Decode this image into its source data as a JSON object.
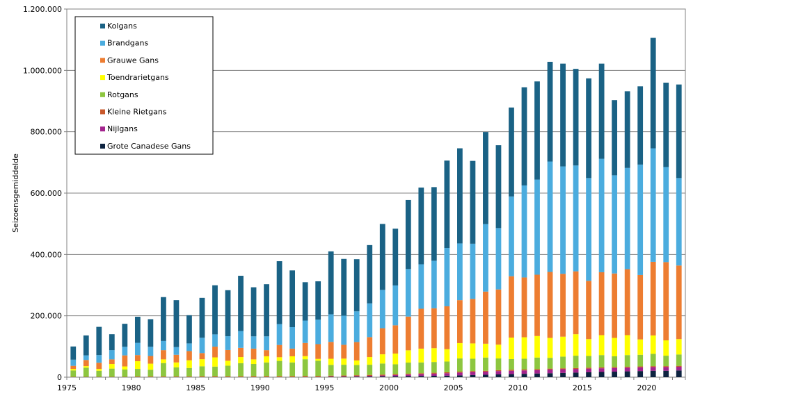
{
  "chart_data": {
    "type": "bar",
    "stacked": true,
    "title": "",
    "xlabel": "",
    "ylabel": "Seizoensgemiddelde",
    "ylim": [
      0,
      1200000
    ],
    "y_ticks": [
      0,
      200000,
      400000,
      600000,
      800000,
      1000000,
      1200000
    ],
    "y_tick_labels": [
      "0",
      "200.000",
      "400.000",
      "600.000",
      "800.000",
      "1.000.000",
      "1.200.000"
    ],
    "x_tick_labels": [
      "1975",
      "1980",
      "1985",
      "1990",
      "1995",
      "2000",
      "2005",
      "2010",
      "2015",
      "2020"
    ],
    "grid": true,
    "legend_position": "top-left",
    "categories": [
      "1975",
      "1976",
      "1977",
      "1978",
      "1979",
      "1980",
      "1981",
      "1982",
      "1983",
      "1984",
      "1985",
      "1986",
      "1987",
      "1988",
      "1989",
      "1990",
      "1991",
      "1992",
      "1993",
      "1994",
      "1995",
      "1996",
      "1997",
      "1998",
      "1999",
      "2000",
      "2001",
      "2002",
      "2003",
      "2004",
      "2005",
      "2006",
      "2007",
      "2008",
      "2009",
      "2010",
      "2011",
      "2012",
      "2013",
      "2014",
      "2015",
      "2016",
      "2017",
      "2018",
      "2019",
      "2020",
      "2021",
      "2022"
    ],
    "series": [
      {
        "name": "Grote Canadese Gans",
        "color": "#0d2340",
        "values": [
          0,
          0,
          0,
          0,
          0,
          0,
          0,
          0,
          0,
          0,
          0,
          0,
          0,
          0,
          0,
          0,
          0,
          0,
          0,
          0,
          1000,
          1000,
          1500,
          2000,
          2500,
          3000,
          3500,
          4000,
          4500,
          5000,
          6000,
          7000,
          8000,
          9000,
          10000,
          11000,
          12000,
          13000,
          14000,
          15000,
          16000,
          17000,
          18000,
          19000,
          20000,
          21000,
          21000,
          22000
        ]
      },
      {
        "name": "Nijlgans",
        "color": "#a3248e",
        "values": [
          0,
          0,
          0,
          0,
          0,
          0,
          0,
          0,
          0,
          0,
          0,
          0,
          0,
          0,
          0,
          0,
          0,
          0,
          500,
          500,
          1000,
          1500,
          2000,
          2500,
          3000,
          4000,
          5000,
          6000,
          7000,
          8000,
          9000,
          10000,
          10000,
          11000,
          11000,
          11000,
          11000,
          12000,
          12000,
          12000,
          12000,
          12000,
          12000,
          12000,
          12000,
          12000,
          12000,
          12000
        ]
      },
      {
        "name": "Kleine Rietgans",
        "color": "#c8582b",
        "values": [
          1000,
          1000,
          1000,
          1000,
          1000,
          2000,
          2000,
          2000,
          2000,
          2000,
          2500,
          2500,
          2500,
          2500,
          3000,
          3000,
          3000,
          3000,
          3000,
          3000,
          3000,
          3000,
          3000,
          3000,
          3000,
          3000,
          3000,
          3000,
          3000,
          3000,
          3000,
          3000,
          3000,
          3000,
          3000,
          3000,
          3000,
          3000,
          3000,
          3000,
          3000,
          3000,
          3000,
          3000,
          3000,
          3000,
          3000,
          3000
        ]
      },
      {
        "name": "Rotgans",
        "color": "#8dc63f",
        "values": [
          21000,
          30000,
          20000,
          27000,
          24000,
          25000,
          22000,
          44000,
          30000,
          28000,
          33000,
          32000,
          35000,
          43000,
          40000,
          45000,
          50000,
          45000,
          55000,
          50000,
          35000,
          35000,
          33000,
          33000,
          36000,
          32000,
          36000,
          35000,
          35000,
          35000,
          43000,
          40000,
          43000,
          38000,
          35000,
          35000,
          38000,
          35000,
          38000,
          40000,
          38000,
          40000,
          35000,
          38000,
          38000,
          40000,
          34000,
          37000
        ]
      },
      {
        "name": "Toendrarietgans",
        "color": "#ffff00",
        "values": [
          5000,
          5000,
          6000,
          15000,
          10000,
          25000,
          20000,
          12000,
          16000,
          25000,
          23000,
          30000,
          16000,
          20000,
          15000,
          20000,
          12000,
          20000,
          10000,
          6000,
          20000,
          20000,
          15000,
          25000,
          30000,
          35000,
          40000,
          45000,
          45000,
          40000,
          50000,
          50000,
          45000,
          45000,
          70000,
          70000,
          70000,
          65000,
          65000,
          70000,
          55000,
          65000,
          60000,
          65000,
          50000,
          60000,
          50000,
          50000
        ]
      },
      {
        "name": "Grauwe Gans",
        "color": "#ed7d31",
        "values": [
          10000,
          20000,
          20000,
          15000,
          36000,
          20000,
          25000,
          30000,
          25000,
          30000,
          20000,
          35000,
          35000,
          30000,
          35000,
          20000,
          40000,
          25000,
          43000,
          48000,
          55000,
          45000,
          60000,
          65000,
          85000,
          92000,
          110000,
          130000,
          130000,
          140000,
          140000,
          145000,
          170000,
          180000,
          200000,
          195000,
          200000,
          215000,
          205000,
          205000,
          190000,
          205000,
          210000,
          215000,
          210000,
          240000,
          255000,
          240000
        ]
      },
      {
        "name": "Brandgans",
        "color": "#4bacde",
        "values": [
          20000,
          15000,
          25000,
          30000,
          28000,
          40000,
          30000,
          30000,
          25000,
          25000,
          50000,
          40000,
          45000,
          55000,
          40000,
          45000,
          68000,
          70000,
          73000,
          80000,
          90000,
          95000,
          100000,
          110000,
          125000,
          130000,
          155000,
          145000,
          155000,
          190000,
          185000,
          180000,
          220000,
          200000,
          260000,
          300000,
          310000,
          360000,
          350000,
          345000,
          335000,
          370000,
          320000,
          330000,
          360000,
          370000,
          310000,
          285000
        ]
      },
      {
        "name": "Kolgans",
        "color": "#1a6285",
        "values": [
          43000,
          65000,
          92000,
          52000,
          75000,
          85000,
          90000,
          143000,
          153000,
          92000,
          130000,
          160000,
          150000,
          180000,
          160000,
          170000,
          205000,
          185000,
          125000,
          125000,
          205000,
          185000,
          170000,
          190000,
          215000,
          185000,
          225000,
          250000,
          240000,
          285000,
          310000,
          270000,
          300000,
          270000,
          290000,
          320000,
          320000,
          325000,
          335000,
          315000,
          325000,
          310000,
          245000,
          250000,
          255000,
          360000,
          275000,
          305000
        ]
      }
    ]
  }
}
